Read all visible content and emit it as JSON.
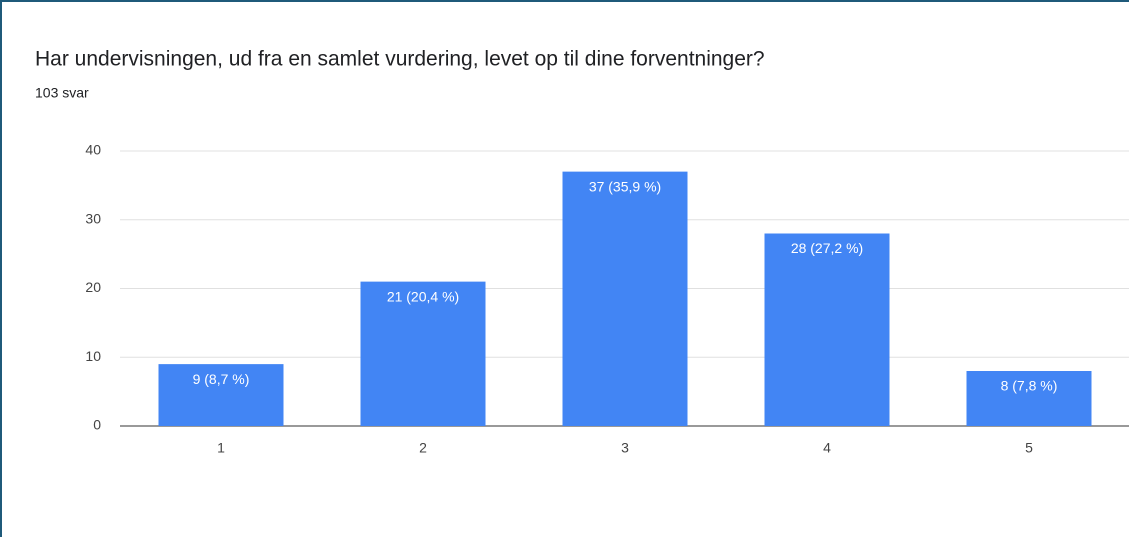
{
  "chart_data": {
    "type": "bar",
    "title": "Har undervisningen, ud fra en samlet vurdering, levet op til dine forventninger?",
    "subtitle": "103 svar",
    "categories": [
      "1",
      "2",
      "3",
      "4",
      "5"
    ],
    "values": [
      9,
      21,
      37,
      28,
      8
    ],
    "value_labels": [
      "9 (8,7 %)",
      "21 (20,4 %)",
      "37 (35,9 %)",
      "28 (27,2 %)",
      "8 (7,8 %)"
    ],
    "color": "#4285f4",
    "ylim": [
      0,
      40
    ],
    "yticks": [
      0,
      10,
      20,
      30,
      40
    ],
    "grid": true
  }
}
